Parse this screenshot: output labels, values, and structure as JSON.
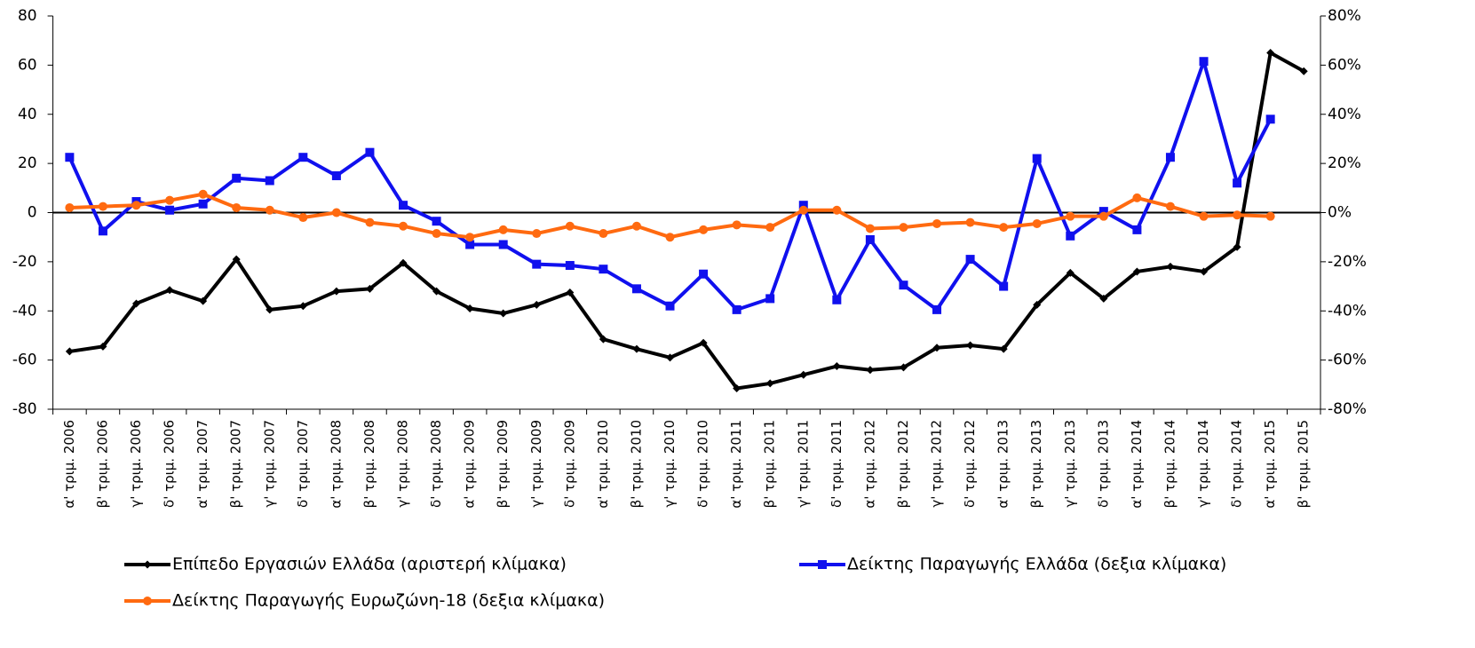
{
  "chart_data": {
    "type": "line",
    "categories": [
      "α' τριμ. 2006",
      "β' τριμ. 2006",
      "γ' τριμ. 2006",
      "δ' τριμ. 2006",
      "α' τριμ. 2007",
      "β' τριμ. 2007",
      "γ' τριμ. 2007",
      "δ' τριμ. 2007",
      "α' τριμ. 2008",
      "β' τριμ. 2008",
      "γ' τριμ. 2008",
      "δ' τριμ. 2008",
      "α' τριμ. 2009",
      "β' τριμ. 2009",
      "γ' τριμ. 2009",
      "δ' τριμ. 2009",
      "α' τριμ. 2010",
      "β' τριμ. 2010",
      "γ' τριμ. 2010",
      "δ' τριμ. 2010",
      "α' τριμ. 2011",
      "β' τριμ. 2011",
      "γ' τριμ. 2011",
      "δ' τριμ. 2011",
      "α' τριμ. 2012",
      "β' τριμ. 2012",
      "γ' τριμ. 2012",
      "δ' τριμ. 2012",
      "α' τριμ. 2013",
      "β' τριμ. 2013",
      "γ' τριμ. 2013",
      "δ' τριμ. 2013",
      "α' τριμ. 2014",
      "β' τριμ. 2014",
      "γ' τριμ. 2014",
      "δ' τριμ. 2014",
      "α' τριμ. 2015",
      "β' τριμ. 2015"
    ],
    "series": [
      {
        "name": "Επίπεδο Εργασιών Ελλάδα (αριστερή κλίμακα)",
        "color": "#000000",
        "marker": "diamond",
        "values": [
          -56.5,
          -54.5,
          -37,
          -31.5,
          -36,
          -19,
          -39.5,
          -38,
          -32,
          -31,
          -20.5,
          -32,
          -39,
          -41,
          -37.5,
          -32.5,
          -51.5,
          -55.5,
          -59,
          -53,
          -71.5,
          -69.5,
          -66,
          -62.5,
          -64,
          -63,
          -55,
          -54,
          -55.5,
          -37.5,
          -24.5,
          -35,
          -24,
          -22,
          -24,
          -14,
          65,
          57.5
        ]
      },
      {
        "name": "Δείκτης Παραγωγής Ελλάδα (δεξια κλίμακα)",
        "color": "#1010ee",
        "marker": "square",
        "axis": "y2",
        "values": [
          22.5,
          -7.5,
          4.5,
          1,
          3.5,
          14,
          13,
          22.5,
          15,
          24.5,
          3,
          -3.5,
          -13,
          -13,
          -21,
          -21.5,
          -23,
          -31,
          -38,
          -25,
          -39.5,
          -35,
          3,
          -35.5,
          -11,
          -29.5,
          -39.5,
          -19,
          -30,
          22,
          -9.5,
          0.5,
          -7,
          22.5,
          61.5,
          12,
          38,
          null
        ]
      },
      {
        "name": "Δείκτης Παραγωγής Ευρωζώνη-18 (δεξια κλίμακα)",
        "color": "#ff6a10",
        "marker": "circle",
        "axis": "y2",
        "values": [
          2,
          2.5,
          3,
          5,
          7.5,
          2,
          1,
          -2,
          0,
          -4,
          -5.5,
          -8.5,
          -10,
          -7,
          -8.5,
          -5.5,
          -8.5,
          -5.5,
          -10,
          -7,
          -5,
          -6,
          1,
          1,
          -6.5,
          -6,
          -4.5,
          -4,
          -6,
          -4.5,
          -1.5,
          -1.5,
          6,
          2.5,
          -1.5,
          -1,
          -1.5,
          null
        ]
      }
    ],
    "ylim": [
      -80,
      80
    ],
    "yticks": [
      -80,
      -60,
      -40,
      -20,
      0,
      20,
      40,
      60,
      80
    ],
    "y2lim": [
      -80,
      80
    ],
    "y2ticks": [
      {
        "value": -80,
        "label": "-80%"
      },
      {
        "value": -60,
        "label": "-60%"
      },
      {
        "value": -40,
        "label": "-40%"
      },
      {
        "value": -20,
        "label": "-20%"
      },
      {
        "value": 0,
        "label": "0%"
      },
      {
        "value": 20,
        "label": "20%"
      },
      {
        "value": 40,
        "label": "40%"
      },
      {
        "value": 60,
        "label": "60%"
      },
      {
        "value": 80,
        "label": "80%"
      }
    ],
    "grid": false,
    "legend": "bottom"
  }
}
